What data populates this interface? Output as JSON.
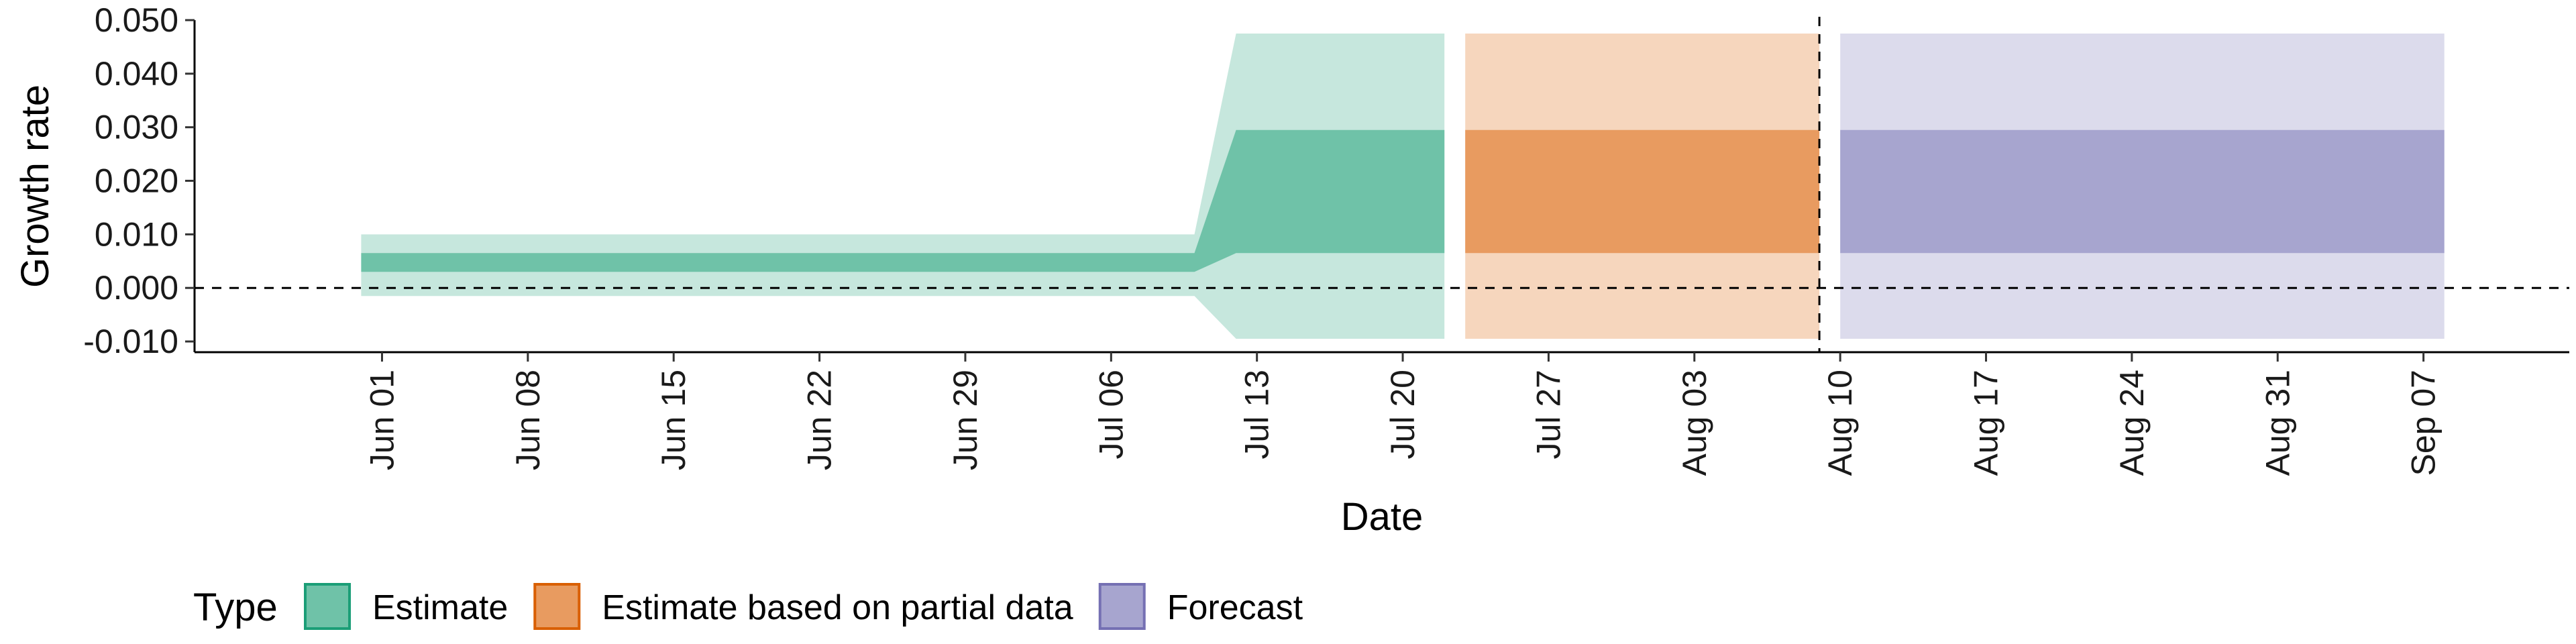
{
  "chart_data": {
    "type": "area",
    "xlabel": "Date",
    "ylabel": "Growth rate",
    "ylim": [
      -0.012,
      0.05
    ],
    "xlim": [
      "2021-05-23",
      "2021-09-14"
    ],
    "grid": false,
    "legend": {
      "placement": "bottom-left",
      "title": "Type"
    },
    "y_ticks": [
      {
        "value": -0.01,
        "label": "-0.010"
      },
      {
        "value": 0.0,
        "label": "0.000"
      },
      {
        "value": 0.01,
        "label": "0.010"
      },
      {
        "value": 0.02,
        "label": "0.020"
      },
      {
        "value": 0.03,
        "label": "0.030"
      },
      {
        "value": 0.04,
        "label": "0.040"
      },
      {
        "value": 0.05,
        "label": "0.050"
      }
    ],
    "x_ticks": [
      {
        "date": "2021-06-01",
        "label": "Jun 01"
      },
      {
        "date": "2021-06-08",
        "label": "Jun 08"
      },
      {
        "date": "2021-06-15",
        "label": "Jun 15"
      },
      {
        "date": "2021-06-22",
        "label": "Jun 22"
      },
      {
        "date": "2021-06-29",
        "label": "Jun 29"
      },
      {
        "date": "2021-07-06",
        "label": "Jul 06"
      },
      {
        "date": "2021-07-13",
        "label": "Jul 13"
      },
      {
        "date": "2021-07-20",
        "label": "Jul 20"
      },
      {
        "date": "2021-07-27",
        "label": "Jul 27"
      },
      {
        "date": "2021-08-03",
        "label": "Aug 03"
      },
      {
        "date": "2021-08-10",
        "label": "Aug 10"
      },
      {
        "date": "2021-08-17",
        "label": "Aug 17"
      },
      {
        "date": "2021-08-24",
        "label": "Aug 24"
      },
      {
        "date": "2021-08-31",
        "label": "Aug 31"
      },
      {
        "date": "2021-09-07",
        "label": "Sep 07"
      }
    ],
    "reference_lines": [
      {
        "axis": "y",
        "value": 0.0,
        "style": "dashed"
      },
      {
        "axis": "x",
        "date": "2021-08-09",
        "style": "dashed"
      }
    ],
    "series": [
      {
        "name": "Estimate",
        "color": "#1b9e77",
        "inner_color": "#6fc2a8",
        "outer_color": "#c6e7dd",
        "points": [
          {
            "x": "2021-05-31",
            "outer_low": -0.0015,
            "outer_high": 0.01,
            "inner_low": 0.0065,
            "inner_high": 0.0065
          },
          {
            "x": "2021-07-10",
            "outer_low": -0.0015,
            "outer_high": 0.01,
            "inner_low": 0.0065,
            "inner_high": 0.0065
          },
          {
            "x": "2021-07-12",
            "outer_low": -0.0095,
            "outer_high": 0.0475,
            "inner_low": 0.0065,
            "inner_high": 0.0295
          },
          {
            "x": "2021-07-22",
            "outer_low": -0.0095,
            "outer_high": 0.0475,
            "inner_low": 0.0065,
            "inner_high": 0.0295
          }
        ],
        "early_inner_low": 0.003
      },
      {
        "name": "Estimate based on partial data",
        "color": "#d95f02",
        "inner_color": "#e89b60",
        "outer_color": "#f6d6bd",
        "points": [
          {
            "x": "2021-07-23",
            "outer_low": -0.0095,
            "outer_high": 0.0475,
            "inner_low": 0.0065,
            "inner_high": 0.0295
          },
          {
            "x": "2021-08-09",
            "outer_low": -0.0095,
            "outer_high": 0.0475,
            "inner_low": 0.0065,
            "inner_high": 0.0295
          }
        ]
      },
      {
        "name": "Forecast",
        "color": "#7570b3",
        "inner_color": "#a7a5cf",
        "outer_color": "#dcdbec",
        "points": [
          {
            "x": "2021-08-10",
            "outer_low": -0.0095,
            "outer_high": 0.0475,
            "inner_low": 0.0065,
            "inner_high": 0.0295
          },
          {
            "x": "2021-09-08",
            "outer_low": -0.0095,
            "outer_high": 0.0475,
            "inner_low": 0.0065,
            "inner_high": 0.0295
          }
        ]
      }
    ]
  }
}
